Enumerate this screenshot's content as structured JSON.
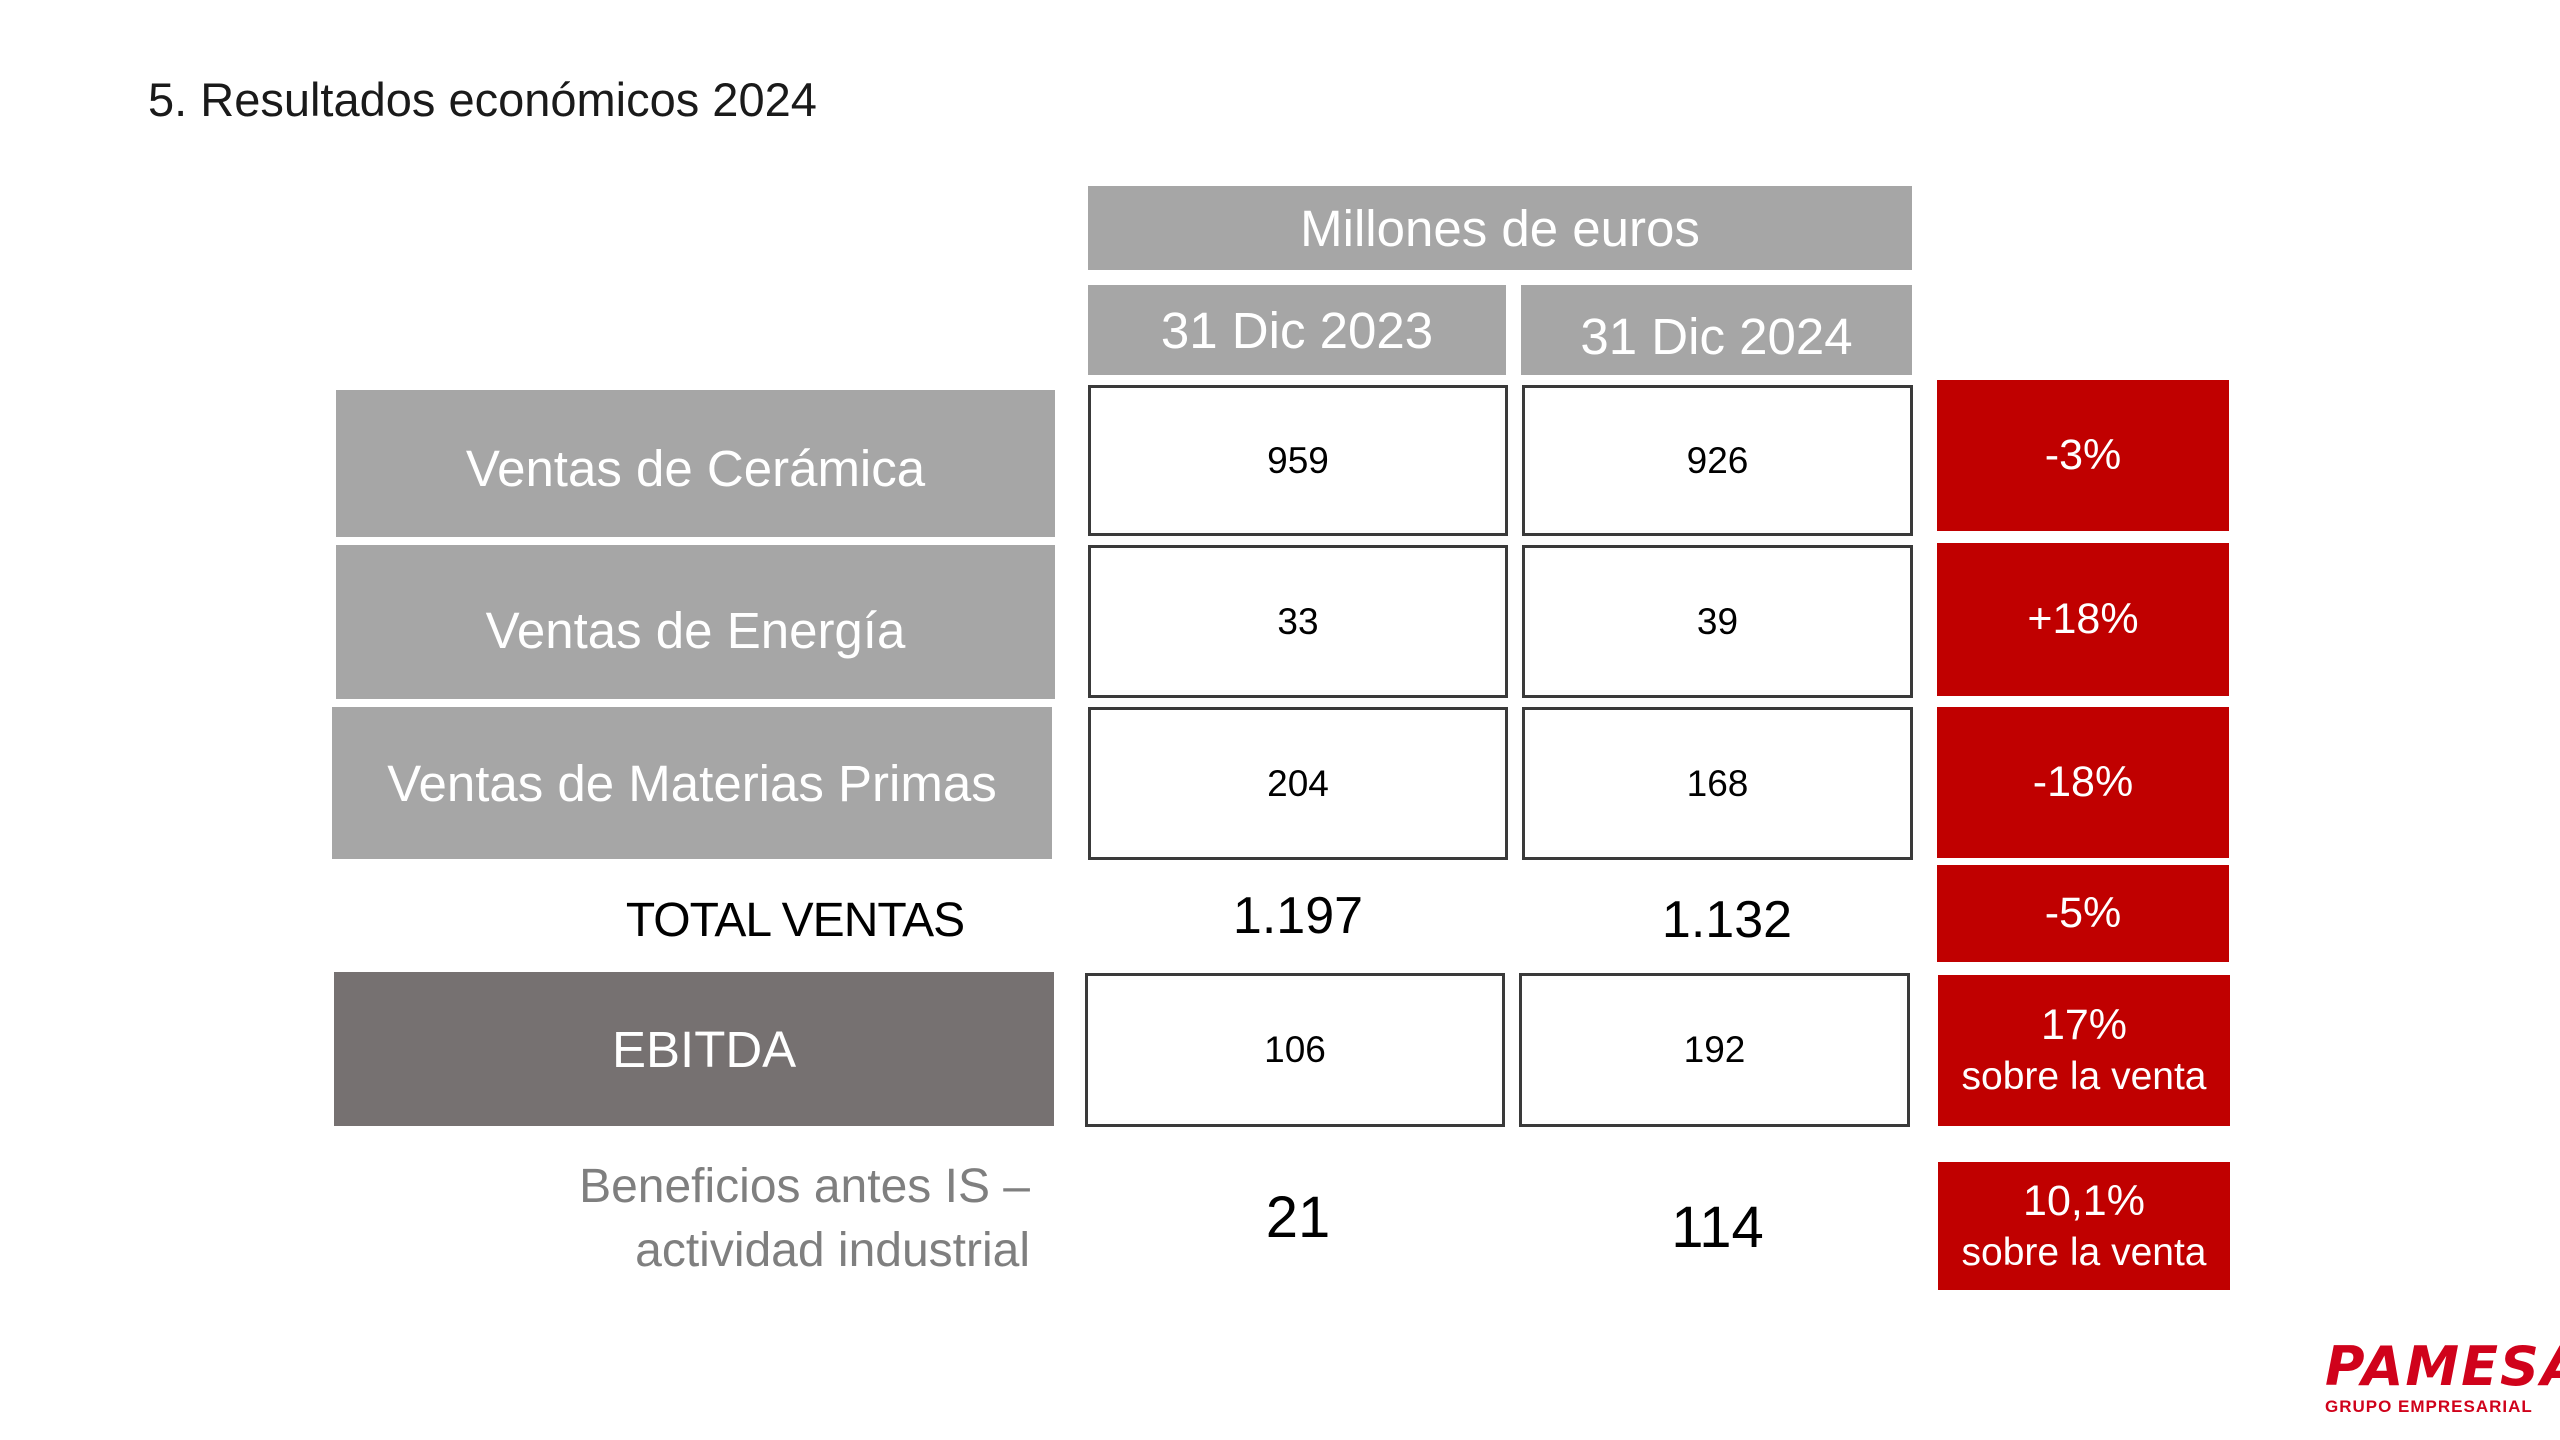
{
  "title": "5. Resultados económicos 2024",
  "header": {
    "units": "Millones de euros",
    "col_2023": "31 Dic 2023",
    "col_2024": "31 Dic 2024"
  },
  "rows": [
    {
      "label": "Ventas de Cerámica",
      "v2023": "959",
      "v2024": "926",
      "change": "-3%"
    },
    {
      "label": "Ventas de Energía",
      "v2023": "33",
      "v2024": "39",
      "change": "+18%"
    },
    {
      "label": "Ventas de Materias Primas",
      "v2023": "204",
      "v2024": "168",
      "change": "-18%"
    }
  ],
  "total": {
    "label": "TOTAL VENTAS",
    "v2023": "1.197",
    "v2024": "1.132",
    "change": "-5%"
  },
  "ebitda": {
    "label": "EBITDA",
    "v2023": "106",
    "v2024": "192",
    "pct": "17%",
    "pct_sub": "sobre la venta"
  },
  "bai": {
    "label_line1": "Beneficios antes IS –",
    "label_line2": "actividad industrial",
    "v2023": "21",
    "v2024": "114",
    "pct": "10,1%",
    "pct_sub": "sobre la venta"
  },
  "logo": {
    "name": "PAMESA",
    "sub": "GRUPO EMPRESARIAL"
  },
  "colors": {
    "accent_red": "#c00000",
    "label_grey": "#a6a6a6",
    "ebitda_grey": "#767171"
  }
}
